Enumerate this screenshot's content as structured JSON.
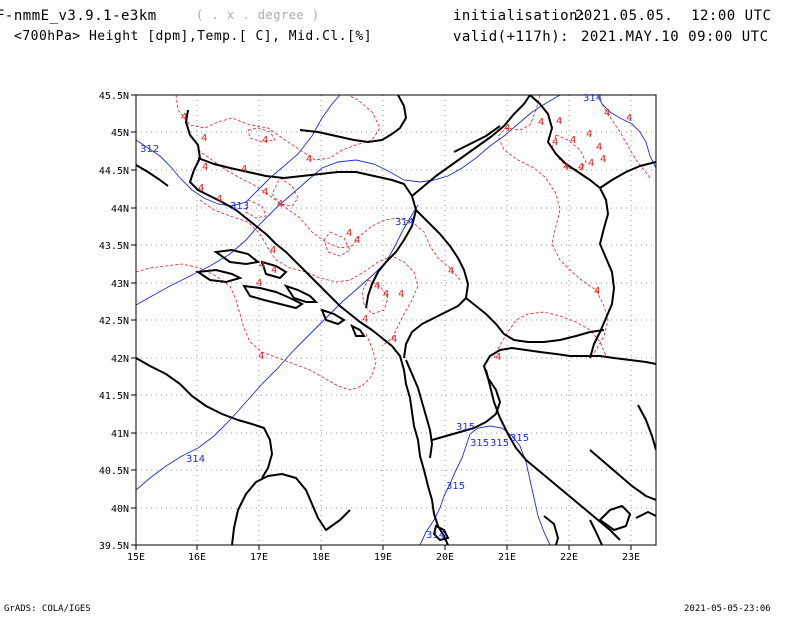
{
  "header": {
    "model": "F-nmmE_v3.9.1-e3km",
    "model_note": "( . x . degree )",
    "fields": "<700hPa> Height [dpm],Temp.[ C], Mid.Cl.[%]",
    "init_label": "initialisation:",
    "init_value": "2021.05.05.  12:00 UTC",
    "valid_label": "valid(+117h):",
    "valid_value": "2021.MAY.10 09:00 UTC"
  },
  "footer": {
    "credit": "GrADS: COLA/IGES",
    "timestamp": "2021-05-05-23:06"
  },
  "axes": {
    "lat_labels": [
      "45.5N",
      "45N",
      "44.5N",
      "44N",
      "43.5N",
      "43N",
      "42.5N",
      "42N",
      "41.5N",
      "41N",
      "40.5N",
      "40N",
      "39.5N"
    ],
    "lon_labels": [
      "15E",
      "16E",
      "17E",
      "18E",
      "19E",
      "20E",
      "21E",
      "22E",
      "23E"
    ]
  },
  "colors": {
    "coast": "#000000",
    "height_contour": "#1a2fd0",
    "temp_contour": "#e02020",
    "grid": "#999999"
  },
  "height_labels": [
    "312",
    "313",
    "314",
    "314",
    "315",
    "315",
    "315",
    "315",
    "315",
    "314",
    "314"
  ],
  "temp_labels": [
    "4",
    "4",
    "4",
    "4",
    "4",
    "4",
    "4",
    "4",
    "4",
    "4",
    "4",
    "4",
    "4",
    "4",
    "4",
    "4",
    "4",
    "4",
    "4",
    "4",
    "4",
    "4",
    "4",
    "4",
    "4",
    "4",
    "4",
    "4",
    "4",
    "4",
    "4",
    "4",
    "4",
    "4",
    "4",
    "4",
    "4",
    "4"
  ]
}
